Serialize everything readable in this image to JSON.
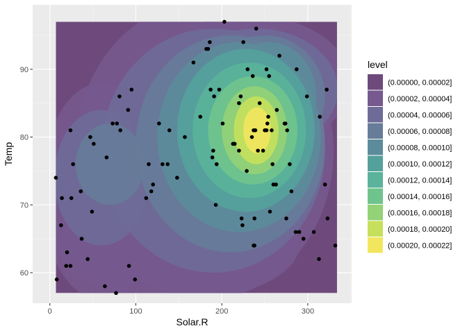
{
  "chart_data": {
    "type": "contour",
    "xlabel": "Solar.R",
    "ylabel": "Temp",
    "xlim": [
      -20,
      351
    ],
    "ylim": [
      55.5,
      99.5
    ],
    "x_ticks": [
      0,
      100,
      200,
      300
    ],
    "y_ticks": [
      60,
      70,
      80,
      90
    ],
    "x_tick_labels": [
      "0",
      "100",
      "200",
      "300"
    ],
    "y_tick_labels": [
      "60",
      "70",
      "80",
      "90"
    ],
    "density_grid_range": {
      "x": [
        7,
        334
      ],
      "y": [
        57,
        97
      ]
    },
    "legend": {
      "title": "level",
      "position": "right",
      "levels": [
        {
          "label": "(0.00000, 0.00002]",
          "color": "#6E4A7C"
        },
        {
          "label": "(0.00002, 0.00004]",
          "color": "#76598E"
        },
        {
          "label": "(0.00004, 0.00006]",
          "color": "#6F6B98"
        },
        {
          "label": "(0.00006, 0.00008]",
          "color": "#667C99"
        },
        {
          "label": "(0.00008, 0.00010]",
          "color": "#5C8C9B"
        },
        {
          "label": "(0.00010, 0.00012]",
          "color": "#54A19C"
        },
        {
          "label": "(0.00012, 0.00014]",
          "color": "#5AB39A"
        },
        {
          "label": "(0.00014, 0.00016]",
          "color": "#6FC48D"
        },
        {
          "label": "(0.00016, 0.00018]",
          "color": "#93D276"
        },
        {
          "label": "(0.00018, 0.00020]",
          "color": "#C6E05B"
        },
        {
          "label": "(0.00020, 0.00022]",
          "color": "#F3E65F"
        }
      ]
    },
    "points": [
      [
        7,
        74
      ],
      [
        8,
        59
      ],
      [
        13,
        67
      ],
      [
        14,
        71
      ],
      [
        19,
        61
      ],
      [
        20,
        63
      ],
      [
        24,
        61
      ],
      [
        25,
        71
      ],
      [
        24,
        81
      ],
      [
        27,
        76
      ],
      [
        36,
        72
      ],
      [
        37,
        65
      ],
      [
        44,
        62
      ],
      [
        47,
        80
      ],
      [
        49,
        69
      ],
      [
        51,
        79
      ],
      [
        64,
        58
      ],
      [
        66,
        77
      ],
      [
        73,
        82
      ],
      [
        77,
        57
      ],
      [
        78,
        82
      ],
      [
        81,
        86
      ],
      [
        82,
        81
      ],
      [
        91,
        84
      ],
      [
        92,
        61
      ],
      [
        95,
        87
      ],
      [
        99,
        59
      ],
      [
        112,
        71
      ],
      [
        115,
        76
      ],
      [
        118,
        72
      ],
      [
        120,
        73
      ],
      [
        127,
        82
      ],
      [
        131,
        76
      ],
      [
        137,
        76
      ],
      [
        139,
        81
      ],
      [
        148,
        74
      ],
      [
        157,
        80
      ],
      [
        167,
        91
      ],
      [
        175,
        83
      ],
      [
        182,
        93
      ],
      [
        184,
        93
      ],
      [
        186,
        94
      ],
      [
        187,
        87
      ],
      [
        189,
        77
      ],
      [
        190,
        78
      ],
      [
        191,
        86
      ],
      [
        193,
        70
      ],
      [
        194,
        76
      ],
      [
        197,
        87
      ],
      [
        201,
        82
      ],
      [
        203,
        97
      ],
      [
        213,
        79
      ],
      [
        215,
        79
      ],
      [
        220,
        85
      ],
      [
        220,
        78
      ],
      [
        222,
        86
      ],
      [
        223,
        68
      ],
      [
        224,
        67
      ],
      [
        225,
        94
      ],
      [
        229,
        75
      ],
      [
        230,
        90
      ],
      [
        235,
        80
      ],
      [
        236,
        89
      ],
      [
        237,
        81
      ],
      [
        237,
        64
      ],
      [
        238,
        64
      ],
      [
        238,
        68
      ],
      [
        239,
        81
      ],
      [
        240,
        96
      ],
      [
        242,
        78
      ],
      [
        244,
        85
      ],
      [
        248,
        78
      ],
      [
        250,
        81
      ],
      [
        252,
        90
      ],
      [
        252,
        81
      ],
      [
        253,
        82
      ],
      [
        254,
        83
      ],
      [
        255,
        89
      ],
      [
        256,
        69
      ],
      [
        258,
        81
      ],
      [
        259,
        76
      ],
      [
        260,
        73
      ],
      [
        263,
        73
      ],
      [
        264,
        84
      ],
      [
        267,
        92
      ],
      [
        273,
        82
      ],
      [
        274,
        82
      ],
      [
        275,
        68
      ],
      [
        276,
        81
      ],
      [
        279,
        76
      ],
      [
        281,
        72
      ],
      [
        286,
        66
      ],
      [
        287,
        90
      ],
      [
        290,
        66
      ],
      [
        295,
        65
      ],
      [
        299,
        86
      ],
      [
        307,
        66
      ],
      [
        313,
        62
      ],
      [
        314,
        83
      ],
      [
        320,
        73
      ],
      [
        322,
        87
      ],
      [
        323,
        68
      ],
      [
        332,
        64
      ]
    ]
  }
}
